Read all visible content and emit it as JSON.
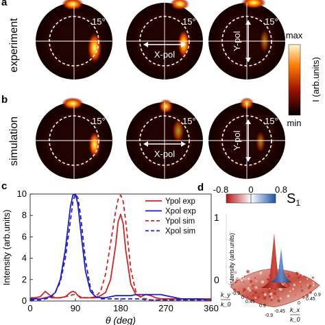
{
  "panels": {
    "a": {
      "letter": "a",
      "row_label": "experiment"
    },
    "b": {
      "letter": "b",
      "row_label": "simulation"
    },
    "c": {
      "letter": "c"
    },
    "d": {
      "letter": "d"
    }
  },
  "angle_label": "15°",
  "xpol_label": "X-pol",
  "ypol_label": "Y-pol",
  "colorbar": {
    "max_label": "max",
    "min_label": "min",
    "title": "I (arb.units)"
  },
  "colors": {
    "ypol": "#d42020",
    "xpol": "#1c1cc8",
    "hot_bg": "#1a0300",
    "hot_mid": "#c02000",
    "hot_high": "#ff8a00",
    "hot_top": "#fff5b0"
  },
  "chart_data": [
    {
      "type": "line",
      "panel": "c",
      "xlabel": "θ (deg)",
      "ylabel": "Intensity (arb.units)",
      "xlim": [
        0,
        360
      ],
      "ylim": [
        0,
        10
      ],
      "xticks": [
        0,
        90,
        180,
        270,
        360
      ],
      "yticks": [
        0,
        2,
        4,
        6,
        8,
        10
      ],
      "legend_position": "top-right",
      "x": [
        0,
        10,
        20,
        30,
        40,
        50,
        60,
        70,
        80,
        85,
        90,
        95,
        100,
        110,
        120,
        130,
        140,
        150,
        160,
        170,
        175,
        180,
        185,
        190,
        200,
        210,
        220,
        230,
        240,
        250,
        260,
        270,
        280,
        290,
        300,
        310,
        320,
        330,
        340,
        350,
        360
      ],
      "series": [
        {
          "name": "Ypol exp",
          "style": "solid",
          "color": "#d42020",
          "values": [
            0.3,
            0.3,
            0.4,
            0.9,
            0.5,
            0.3,
            0.3,
            0.4,
            0.8,
            0.9,
            0.8,
            0.5,
            0.3,
            0.3,
            0.3,
            0.3,
            0.5,
            0.8,
            2.0,
            5.2,
            7.4,
            8.1,
            7.2,
            4.8,
            1.6,
            0.6,
            0.4,
            0.6,
            0.5,
            0.3,
            0.2,
            0.2,
            0.2,
            0.2,
            0.2,
            0.2,
            0.2,
            0.2,
            0.2,
            0.2,
            0.2
          ]
        },
        {
          "name": "Xpol exp",
          "style": "solid",
          "color": "#1c1cc8",
          "values": [
            0.2,
            0.2,
            0.2,
            0.3,
            0.4,
            0.8,
            2.0,
            4.8,
            8.8,
            9.9,
            10.0,
            9.0,
            6.8,
            2.8,
            0.9,
            0.4,
            0.3,
            0.3,
            0.4,
            0.5,
            0.5,
            0.5,
            0.5,
            0.5,
            0.5,
            0.6,
            0.6,
            0.6,
            0.6,
            0.6,
            0.6,
            0.5,
            0.4,
            0.3,
            0.2,
            0.2,
            0.2,
            0.2,
            0.2,
            0.1,
            0.1
          ]
        },
        {
          "name": "Ypol sim",
          "style": "dashed",
          "color": "#d42020",
          "values": [
            0.1,
            0.1,
            0.2,
            0.3,
            0.3,
            0.3,
            0.3,
            0.4,
            0.5,
            0.6,
            0.6,
            0.5,
            0.4,
            0.3,
            0.3,
            0.4,
            0.9,
            2.5,
            5.4,
            8.4,
            9.5,
            9.9,
            9.3,
            7.5,
            3.0,
            0.9,
            0.3,
            0.2,
            0.1,
            0.1,
            0.1,
            0.1,
            0.1,
            0.1,
            0.1,
            0.1,
            0.1,
            0.1,
            0.1,
            0.1,
            0.1
          ]
        },
        {
          "name": "Xpol sim",
          "style": "dashed",
          "color": "#1c1cc8",
          "values": [
            0.1,
            0.1,
            0.1,
            0.2,
            0.3,
            0.8,
            1.8,
            4.0,
            7.5,
            9.3,
            10.0,
            9.6,
            8.1,
            3.8,
            1.2,
            0.4,
            0.2,
            0.2,
            0.2,
            0.2,
            0.2,
            0.2,
            0.2,
            0.2,
            0.2,
            0.2,
            0.2,
            0.1,
            0.1,
            0.1,
            0.1,
            0.1,
            0.1,
            0.1,
            0.1,
            0.1,
            0.1,
            0.1,
            0.1,
            0.1,
            0.1
          ]
        }
      ]
    },
    {
      "type": "heatmap",
      "panel": "d",
      "zlabel": "Intensity (arb.units)",
      "zticks": [
        "1",
        "0"
      ],
      "xlabel_num": "k_x",
      "xlabel_den": "k_0",
      "ylabel_num": "k_y",
      "ylabel_den": "k_0",
      "kx_ticks": [
        "-0.9",
        "-0.45",
        "0",
        "0.45",
        "0.9"
      ],
      "ky_ticks": [
        "-0.9",
        "0",
        "0.45",
        "0.9"
      ],
      "colorbar_label": "S",
      "colorbar_sub": "1",
      "colorbar_ticks": [
        "-0.8",
        "0",
        "0.8"
      ],
      "colorbar_range": [
        -0.8,
        0.8
      ]
    }
  ]
}
